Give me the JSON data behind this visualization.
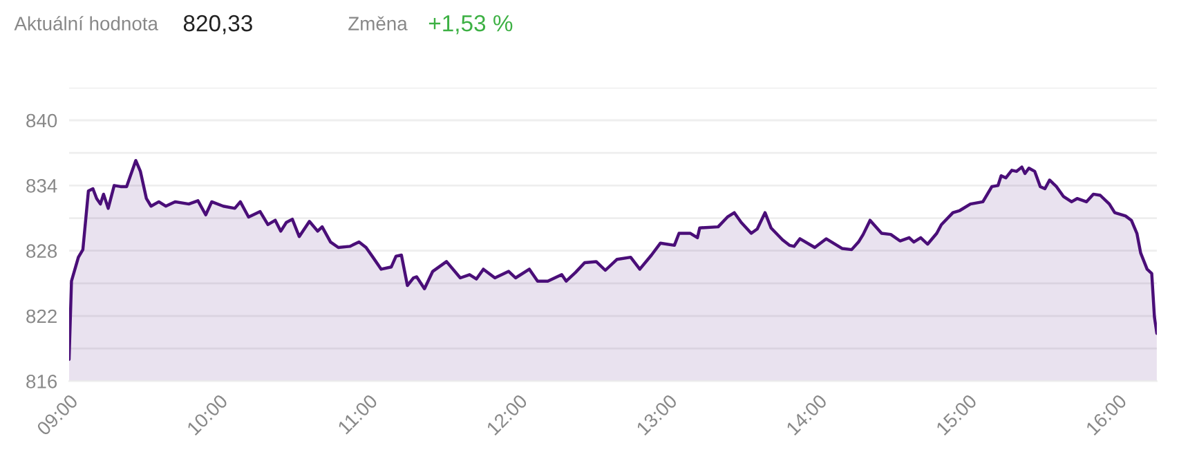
{
  "chart_data": {
    "type": "area",
    "annotations": [
      "Aktuální hodnota",
      "820,33",
      "Změna",
      "+1,53 %"
    ],
    "x": [
      9.0,
      9.016,
      9.062,
      9.092,
      9.129,
      9.159,
      9.184,
      9.209,
      9.23,
      9.261,
      9.301,
      9.344,
      9.384,
      9.445,
      9.476,
      9.516,
      9.547,
      9.599,
      9.645,
      9.707,
      9.799,
      9.86,
      9.912,
      9.952,
      10.029,
      10.106,
      10.143,
      10.198,
      10.275,
      10.327,
      10.376,
      10.413,
      10.45,
      10.49,
      10.536,
      10.604,
      10.659,
      10.689,
      10.745,
      10.797,
      10.874,
      10.935,
      10.982,
      11.028,
      11.083,
      11.15,
      11.182,
      11.218,
      11.258,
      11.298,
      11.32,
      11.372,
      11.427,
      11.519,
      11.611,
      11.673,
      11.719,
      11.765,
      11.842,
      11.934,
      11.98,
      12.072,
      12.127,
      12.195,
      12.288,
      12.318,
      12.38,
      12.441,
      12.518,
      12.579,
      12.656,
      12.748,
      12.809,
      12.887,
      12.947,
      13.04,
      13.071,
      13.147,
      13.194,
      13.209,
      13.332,
      13.394,
      13.44,
      13.486,
      13.553,
      13.593,
      13.645,
      13.685,
      13.762,
      13.808,
      13.839,
      13.878,
      13.977,
      14.053,
      14.161,
      14.223,
      14.269,
      14.3,
      14.346,
      14.423,
      14.484,
      14.546,
      14.607,
      14.638,
      14.684,
      14.73,
      14.791,
      14.822,
      14.899,
      14.945,
      15.016,
      15.099,
      15.159,
      15.2,
      15.221,
      15.252,
      15.292,
      15.323,
      15.359,
      15.38,
      15.406,
      15.445,
      15.482,
      15.513,
      15.544,
      15.59,
      15.636,
      15.691,
      15.728,
      15.79,
      15.836,
      15.882,
      15.943,
      15.979,
      16.051,
      16.09,
      16.127,
      16.152,
      16.195,
      16.226,
      16.244,
      16.26
    ],
    "series": [
      {
        "color": "#4a0e78",
        "values": [
          818.0,
          825.2,
          827.4,
          828.1,
          833.5,
          833.7,
          832.8,
          832.3,
          833.2,
          831.9,
          834.0,
          833.9,
          833.9,
          836.3,
          835.3,
          832.8,
          832.1,
          832.5,
          832.1,
          832.5,
          832.3,
          832.6,
          831.3,
          832.5,
          832.1,
          831.9,
          832.5,
          831.1,
          831.6,
          830.4,
          830.8,
          829.8,
          830.6,
          830.9,
          829.3,
          830.7,
          829.8,
          830.2,
          828.8,
          828.3,
          828.4,
          828.8,
          828.3,
          827.4,
          826.3,
          826.5,
          827.5,
          827.6,
          824.8,
          825.5,
          825.6,
          824.5,
          826.1,
          827.0,
          825.5,
          825.8,
          825.4,
          826.3,
          825.5,
          826.1,
          825.5,
          826.3,
          825.2,
          825.2,
          825.8,
          825.2,
          826.0,
          826.9,
          827.0,
          826.2,
          827.2,
          827.4,
          826.3,
          827.6,
          828.7,
          828.5,
          829.6,
          829.6,
          829.2,
          830.1,
          830.2,
          831.1,
          831.5,
          830.6,
          829.6,
          830.0,
          831.5,
          830.1,
          829.0,
          828.5,
          828.4,
          829.1,
          828.3,
          829.1,
          828.2,
          828.1,
          828.8,
          829.5,
          830.8,
          829.6,
          829.5,
          828.9,
          829.2,
          828.8,
          829.2,
          828.6,
          829.6,
          830.4,
          831.5,
          831.7,
          832.3,
          832.5,
          833.9,
          834.0,
          834.9,
          834.7,
          835.4,
          835.3,
          835.7,
          835.1,
          835.6,
          835.3,
          833.9,
          833.7,
          834.5,
          833.9,
          833.0,
          832.5,
          832.8,
          832.5,
          833.2,
          833.1,
          832.3,
          831.5,
          831.2,
          830.8,
          829.6,
          827.8,
          826.3,
          825.9,
          821.9,
          820.4
        ]
      }
    ],
    "xlim": [
      9,
      16.26
    ],
    "xticks": [
      {
        "value": 9,
        "label": "09:00"
      },
      {
        "value": 10,
        "label": "10:00"
      },
      {
        "value": 11,
        "label": "11:00"
      },
      {
        "value": 12,
        "label": "12:00"
      },
      {
        "value": 13,
        "label": "13:00"
      },
      {
        "value": 14,
        "label": "14:00"
      },
      {
        "value": 15,
        "label": "15:00"
      },
      {
        "value": 16,
        "label": "16:00"
      }
    ],
    "ylim": [
      816,
      843
    ],
    "yticks": [
      816,
      {
        "value": 819,
        "label": null
      },
      822,
      {
        "value": 825,
        "label": null
      },
      828,
      {
        "value": 831,
        "label": null
      },
      834,
      {
        "value": 837,
        "label": null
      },
      840,
      {
        "value": 843,
        "label": null
      }
    ],
    "grid": "y",
    "legend": false
  }
}
